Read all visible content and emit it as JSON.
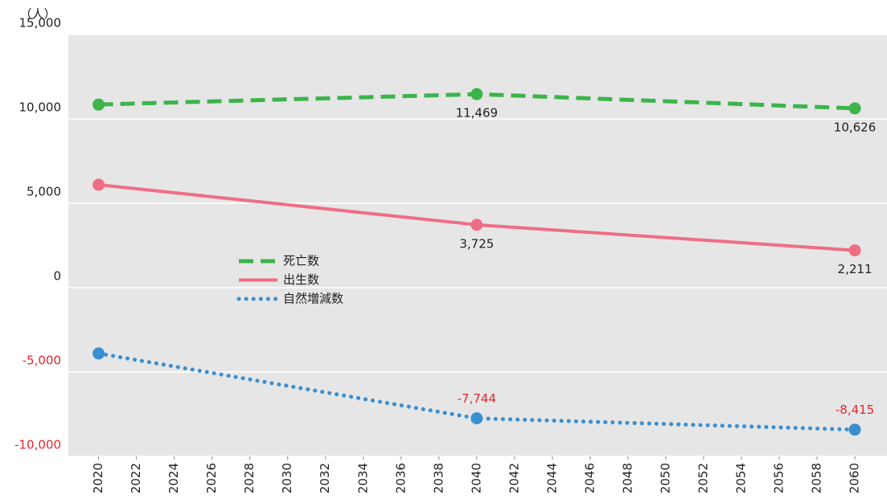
{
  "chart_data": {
    "type": "line",
    "y_unit": "（人）",
    "x": [
      2020,
      2040,
      2060
    ],
    "xlim": [
      2018.4,
      2061.7
    ],
    "xticks": [
      2020,
      2022,
      2024,
      2026,
      2028,
      2030,
      2032,
      2034,
      2036,
      2038,
      2040,
      2042,
      2044,
      2046,
      2048,
      2050,
      2052,
      2054,
      2056,
      2058,
      2060
    ],
    "ylim": [
      -10000,
      15000
    ],
    "yticks": [
      {
        "value": -10000,
        "label": "-10,000"
      },
      {
        "value": -5000,
        "label": "-5,000"
      },
      0,
      {
        "value": 5000,
        "label": "5,000"
      },
      {
        "value": 10000,
        "label": "10,000"
      },
      {
        "value": 15000,
        "label": "15,000"
      }
    ],
    "grid": true,
    "negative_label_color": "#e8262d",
    "legend_position": "center",
    "series": [
      {
        "name": "死亡数",
        "color": "#3cb44a",
        "style": "dashed",
        "values": [
          10850,
          11469,
          10626
        ],
        "value_labels": [
          null,
          "11,469",
          "10,626"
        ],
        "label_position": "below"
      },
      {
        "name": "出生数",
        "color": "#ee6e85",
        "style": "solid",
        "values": [
          6100,
          3725,
          2211
        ],
        "value_labels": [
          null,
          "3,725",
          "2,211"
        ],
        "label_position": "below"
      },
      {
        "name": "自然増減数",
        "color": "#3a8fd0",
        "style": "dotted",
        "values": [
          -3900,
          -7744,
          -8415
        ],
        "value_labels": [
          null,
          "-7,744",
          "-8,415"
        ],
        "label_position": "above"
      }
    ]
  }
}
